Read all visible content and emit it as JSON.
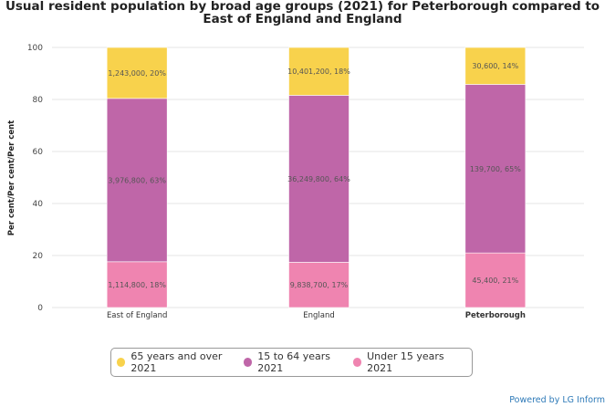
{
  "chart_data": {
    "type": "bar",
    "stacked": true,
    "title": "Usual resident population by broad age groups (2021) for Peterborough compared to East of England and England",
    "xlabel": "",
    "ylabel": "Per cent/Per cent/Per cent",
    "ylim": [
      0,
      100
    ],
    "yticks": [
      "0",
      "20",
      "40",
      "60",
      "80",
      "100"
    ],
    "grid": true,
    "legend_position": "bottom",
    "categories": [
      "East of England",
      "England",
      "Peterborough"
    ],
    "bold_category": "Peterborough",
    "series": [
      {
        "name": "Under 15 years 2021",
        "color": "#ef84b0",
        "values": [
          17.6,
          17.4,
          21.0
        ],
        "labels": [
          "1,114,800, 18%",
          "9,838,700, 17%",
          "45,400, 21%"
        ]
      },
      {
        "name": "15 to 64 years 2021",
        "color": "#bf66a8",
        "values": [
          62.8,
          64.2,
          64.8
        ],
        "labels": [
          "3,976,800, 63%",
          "36,249,800, 64%",
          "139,700, 65%"
        ]
      },
      {
        "name": "65 years and over 2021",
        "color": "#f8d24c",
        "values": [
          19.6,
          18.4,
          14.2
        ],
        "labels": [
          "1,243,000, 20%",
          "10,401,200, 18%",
          "30,600, 14%"
        ]
      }
    ]
  },
  "legend_order": [
    2,
    1,
    0
  ],
  "credit": "Powered by LG Inform"
}
